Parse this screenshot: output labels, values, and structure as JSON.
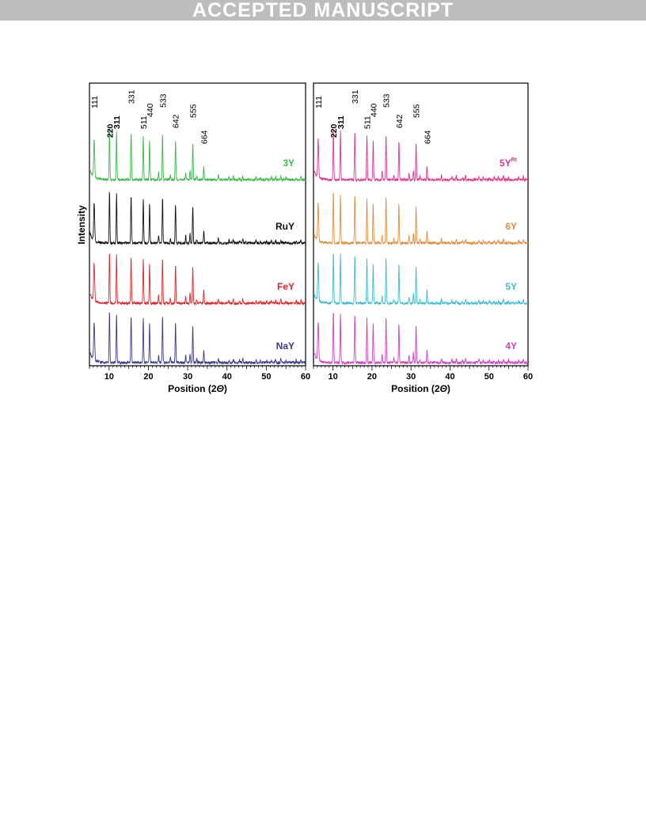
{
  "banner": {
    "text": "ACCEPTED MANUSCRIPT"
  },
  "chart_data": {
    "type": "line",
    "ylabel": "Intensity",
    "xlabel_prefix": "Position (2",
    "xlabel_theta": "Θ",
    "xlabel_suffix": ")",
    "xlim": [
      5,
      60
    ],
    "xticks": [
      10,
      20,
      30,
      40,
      50,
      60
    ],
    "grid": false,
    "peaks_2theta": [
      6.2,
      10.1,
      11.9,
      15.6,
      18.7,
      20.3,
      23.6,
      26.9,
      31.3,
      34.1
    ],
    "reflections": [
      {
        "label": "111",
        "x": 6.2,
        "bold": false
      },
      {
        "label": "220",
        "x": 10.1,
        "bold": true
      },
      {
        "label": "311",
        "x": 11.9,
        "bold": true
      },
      {
        "label": "331",
        "x": 15.6,
        "bold": false
      },
      {
        "label": "511",
        "x": 18.7,
        "bold": false
      },
      {
        "label": "440",
        "x": 20.3,
        "bold": false
      },
      {
        "label": "533",
        "x": 23.6,
        "bold": false
      },
      {
        "label": "642",
        "x": 26.9,
        "bold": false
      },
      {
        "label": "555",
        "x": 31.3,
        "bold": false
      },
      {
        "label": "664",
        "x": 34.1,
        "bold": false
      }
    ],
    "panels": [
      {
        "series": [
          {
            "name": "3Y",
            "color": "#3cb84a"
          },
          {
            "name": "RuY",
            "color": "#111111"
          },
          {
            "name": "FeY",
            "color": "#e0262b"
          },
          {
            "name": "NaY",
            "color": "#3a3a8c"
          }
        ]
      },
      {
        "series": [
          {
            "name": "5Y",
            "sup": "Rt",
            "color": "#e0358f"
          },
          {
            "name": "6Y",
            "color": "#e28a3c"
          },
          {
            "name": "5Y",
            "color": "#3fbcd0"
          },
          {
            "name": "4Y",
            "color": "#d23fc0"
          }
        ]
      }
    ]
  }
}
